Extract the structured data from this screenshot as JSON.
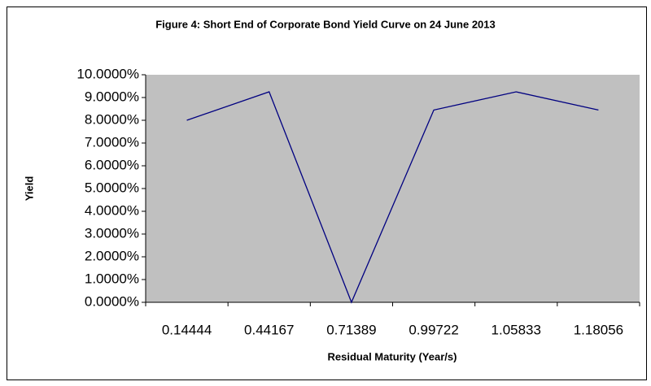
{
  "chart_data": {
    "type": "line",
    "title": "Figure 4: Short End of Corporate Bond Yield Curve on 24 June 2013",
    "x_label": "Residual Maturity (Year/s)",
    "y_label": "Yield",
    "categories": [
      "0.14444",
      "0.44167",
      "0.71389",
      "0.99722",
      "1.05833",
      "1.18056"
    ],
    "series": [
      {
        "name": "Yield",
        "color": "#000080",
        "values": [
          8.0,
          9.25,
          0,
          8.45,
          9.25,
          8.45
        ]
      }
    ],
    "ylim": [
      0,
      10
    ],
    "yticks": [
      {
        "value": 0,
        "label": "0.0000%"
      },
      {
        "value": 1,
        "label": "1.0000%"
      },
      {
        "value": 2,
        "label": "2.0000%"
      },
      {
        "value": 3,
        "label": "3.0000%"
      },
      {
        "value": 4,
        "label": "4.0000%"
      },
      {
        "value": 5,
        "label": "5.0000%"
      },
      {
        "value": 6,
        "label": "6.0000%"
      },
      {
        "value": 7,
        "label": "7.0000%"
      },
      {
        "value": 8,
        "label": "8.0000%"
      },
      {
        "value": 9,
        "label": "9.0000%"
      },
      {
        "value": 10,
        "label": "10.0000%"
      }
    ],
    "plot_background": "#c0c0c0",
    "grid": false,
    "legend": false
  }
}
